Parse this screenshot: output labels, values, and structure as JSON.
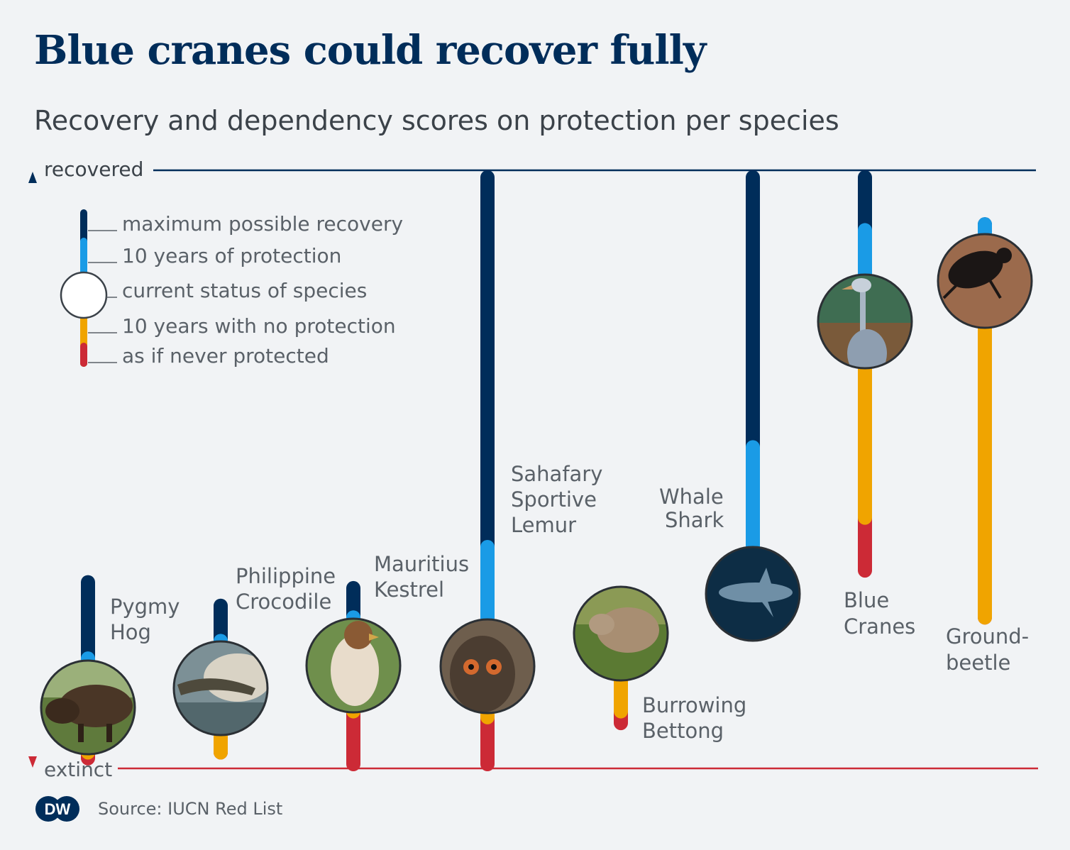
{
  "title": "Blue cranes could recover fully",
  "subtitle": "Recovery and dependency scores on protection per species",
  "source": "Source: IUCN Red List",
  "logo_text": "DW",
  "colors": {
    "max_recovery": "#002d5a",
    "ten_years_protection": "#1a9be6",
    "no_protection": "#f0a400",
    "never_protected": "#cc2a36",
    "text": "#5a6168",
    "extinct_line": "#cc2a36"
  },
  "legend": {
    "max": "maximum possible recovery",
    "protection": "10 years of protection",
    "current": "current status of species",
    "no_protection": "10 years with no protection",
    "never": "as if never protected"
  },
  "chart_data": {
    "type": "range",
    "axis": {
      "top_label": "recovered",
      "bottom_label": "extinct",
      "top_value": 100,
      "bottom_value": 0
    },
    "series_keys": [
      "max",
      "ten_years_protection",
      "current",
      "ten_years_no_protection",
      "never_protected"
    ],
    "species": [
      {
        "label_lines": [
          "Pygmy",
          "Hog"
        ],
        "photo": "pygmy-hog",
        "max": 31,
        "ten_years_protection": 18,
        "current": 10,
        "ten_years_no_protection": 2,
        "never_protected": 1
      },
      {
        "label_lines": [
          "Philippine",
          "Crocodile"
        ],
        "photo": "philippine-crocodile",
        "max": 27,
        "ten_years_protection": 21,
        "current": 13,
        "ten_years_no_protection": 2,
        "never_protected": 2
      },
      {
        "label_lines": [
          "Mauritius",
          "Kestrel"
        ],
        "photo": "mauritius-kestrel",
        "max": 30,
        "ten_years_protection": 25,
        "current": 17,
        "ten_years_no_protection": 9,
        "never_protected": 0
      },
      {
        "label_lines": [
          "Sahafary",
          "Sportive",
          "Lemur"
        ],
        "photo": "sahafary-sportive-lemur",
        "max": 100,
        "ten_years_protection": 37,
        "current": 17,
        "ten_years_no_protection": 8,
        "never_protected": 0
      },
      {
        "label_lines": [
          "Burrowing",
          "Bettong"
        ],
        "photo": "burrowing-bettong",
        "max": 23,
        "ten_years_protection": 23,
        "current": 23,
        "ten_years_no_protection": 9,
        "never_protected": 7
      },
      {
        "label_lines": [
          "Whale",
          "Shark"
        ],
        "photo": "whale-shark",
        "max": 100,
        "ten_years_protection": 54,
        "current": 29,
        "ten_years_no_protection": 29,
        "never_protected": 29
      },
      {
        "label_lines": [
          "Blue",
          "Cranes"
        ],
        "photo": "blue-cranes",
        "max": 100,
        "ten_years_protection": 91,
        "current": 75,
        "ten_years_no_protection": 42,
        "never_protected": 33
      },
      {
        "label_lines": [
          "Ground-",
          "beetle"
        ],
        "photo": "ground-beetle",
        "max": 92,
        "ten_years_protection": 92,
        "current": 82,
        "ten_years_no_protection": 25,
        "never_protected": 25
      }
    ]
  }
}
